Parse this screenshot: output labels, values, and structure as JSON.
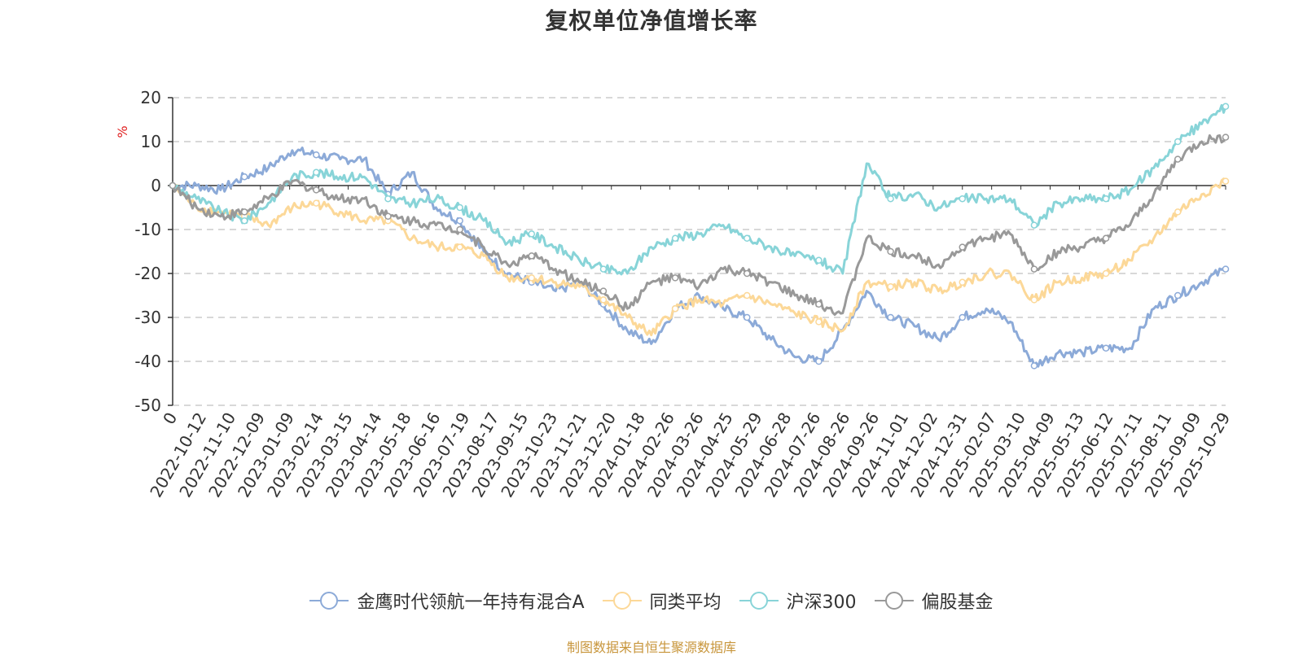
{
  "chart_data": {
    "type": "line",
    "title": "复权单位净值增长率",
    "ylabel": "%",
    "xlabel": "",
    "ylim": [
      -50,
      20
    ],
    "yticks": [
      20,
      10,
      0,
      -10,
      -20,
      -30,
      -40,
      -50
    ],
    "grid": true,
    "legend_position": "bottom",
    "x_tick_labels": [
      "0",
      "2022-10-12",
      "2022-11-10",
      "2022-12-09",
      "2023-01-09",
      "2023-02-14",
      "2023-03-15",
      "2023-04-14",
      "2023-05-18",
      "2023-06-16",
      "2023-07-19",
      "2023-08-17",
      "2023-09-15",
      "2023-10-23",
      "2023-11-21",
      "2023-12-20",
      "2024-01-18",
      "2024-02-26",
      "2024-03-26",
      "2024-04-25",
      "2024-05-29",
      "2024-06-28",
      "2024-07-26",
      "2024-08-26",
      "2024-09-26",
      "2024-11-01",
      "2024-12-02",
      "2024-12-31",
      "2025-02-07",
      "2025-03-10",
      "2025-04-09",
      "2025-05-13",
      "2025-06-12",
      "2025-07-11",
      "2025-08-11",
      "2025-09-09",
      "2025-10-29"
    ],
    "series": [
      {
        "name": "金鹰时代领航一年持有混合A",
        "color": "#8caad8",
        "values": [
          0,
          0,
          -1,
          2,
          4,
          8,
          7,
          6,
          6,
          -2,
          3,
          -5,
          -8,
          -15,
          -20,
          -22,
          -24,
          -22,
          -27,
          -33,
          -36,
          -28,
          -25,
          -28,
          -30,
          -35,
          -39,
          -40,
          -33,
          -24,
          -30,
          -32,
          -35,
          -30,
          -28,
          -31,
          -41,
          -38,
          -38,
          -37,
          -37,
          -28,
          -25,
          -22,
          -19
        ]
      },
      {
        "name": "同类平均",
        "color": "#fcd898",
        "values": [
          0,
          -5,
          -6,
          -7,
          -9,
          -5,
          -4,
          -6,
          -8,
          -8,
          -12,
          -14,
          -14,
          -16,
          -21,
          -21,
          -22,
          -23,
          -26,
          -30,
          -34,
          -28,
          -26,
          -27,
          -25,
          -27,
          -29,
          -31,
          -33,
          -22,
          -23,
          -22,
          -24,
          -22,
          -20,
          -20,
          -26,
          -22,
          -21,
          -20,
          -17,
          -12,
          -6,
          -2,
          1
        ]
      },
      {
        "name": "沪深300",
        "color": "#88d4d8",
        "values": [
          0,
          -3,
          -6,
          -8,
          -4,
          2,
          3,
          2,
          2,
          -3,
          -4,
          -3,
          -5,
          -8,
          -13,
          -11,
          -14,
          -17,
          -19,
          -20,
          -14,
          -12,
          -11,
          -9,
          -12,
          -14,
          -16,
          -17,
          -20,
          5,
          -3,
          -2,
          -5,
          -3,
          -3,
          -3,
          -9,
          -4,
          -3,
          -3,
          -1,
          4,
          10,
          14,
          18
        ]
      },
      {
        "name": "偏股基金",
        "color": "#999999",
        "values": [
          0,
          -5,
          -7,
          -6,
          -3,
          1,
          -1,
          -3,
          -3,
          -7,
          -8,
          -9,
          -10,
          -14,
          -18,
          -16,
          -19,
          -22,
          -24,
          -28,
          -22,
          -21,
          -23,
          -19,
          -20,
          -22,
          -25,
          -27,
          -29,
          -12,
          -15,
          -16,
          -18,
          -14,
          -12,
          -11,
          -19,
          -15,
          -14,
          -12,
          -9,
          -2,
          6,
          10,
          11
        ]
      }
    ]
  },
  "source_note": "制图数据来自恒生聚源数据库"
}
